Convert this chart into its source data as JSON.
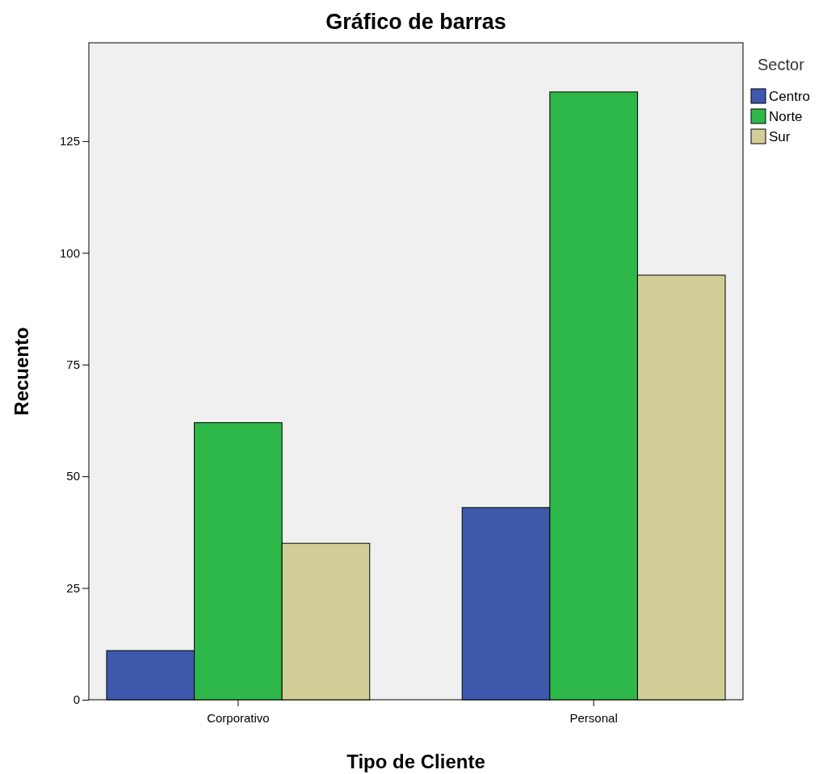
{
  "chart_data": {
    "type": "bar",
    "title": "Gráfico de barras",
    "xlabel": "Tipo de Cliente",
    "ylabel": "Recuento",
    "legend_title": "Sector",
    "categories": [
      "Corporativo",
      "Personal"
    ],
    "series": [
      {
        "name": "Centro",
        "color": "#3e58ac",
        "values": [
          11,
          43
        ]
      },
      {
        "name": "Norte",
        "color": "#2fb84a",
        "values": [
          62,
          136
        ]
      },
      {
        "name": "Sur",
        "color": "#d3ce97",
        "values": [
          35,
          95
        ]
      }
    ],
    "ylim": [
      0,
      147
    ],
    "yticks": [
      0,
      25,
      50,
      75,
      100,
      125
    ],
    "grid": false,
    "legend": "top right"
  }
}
